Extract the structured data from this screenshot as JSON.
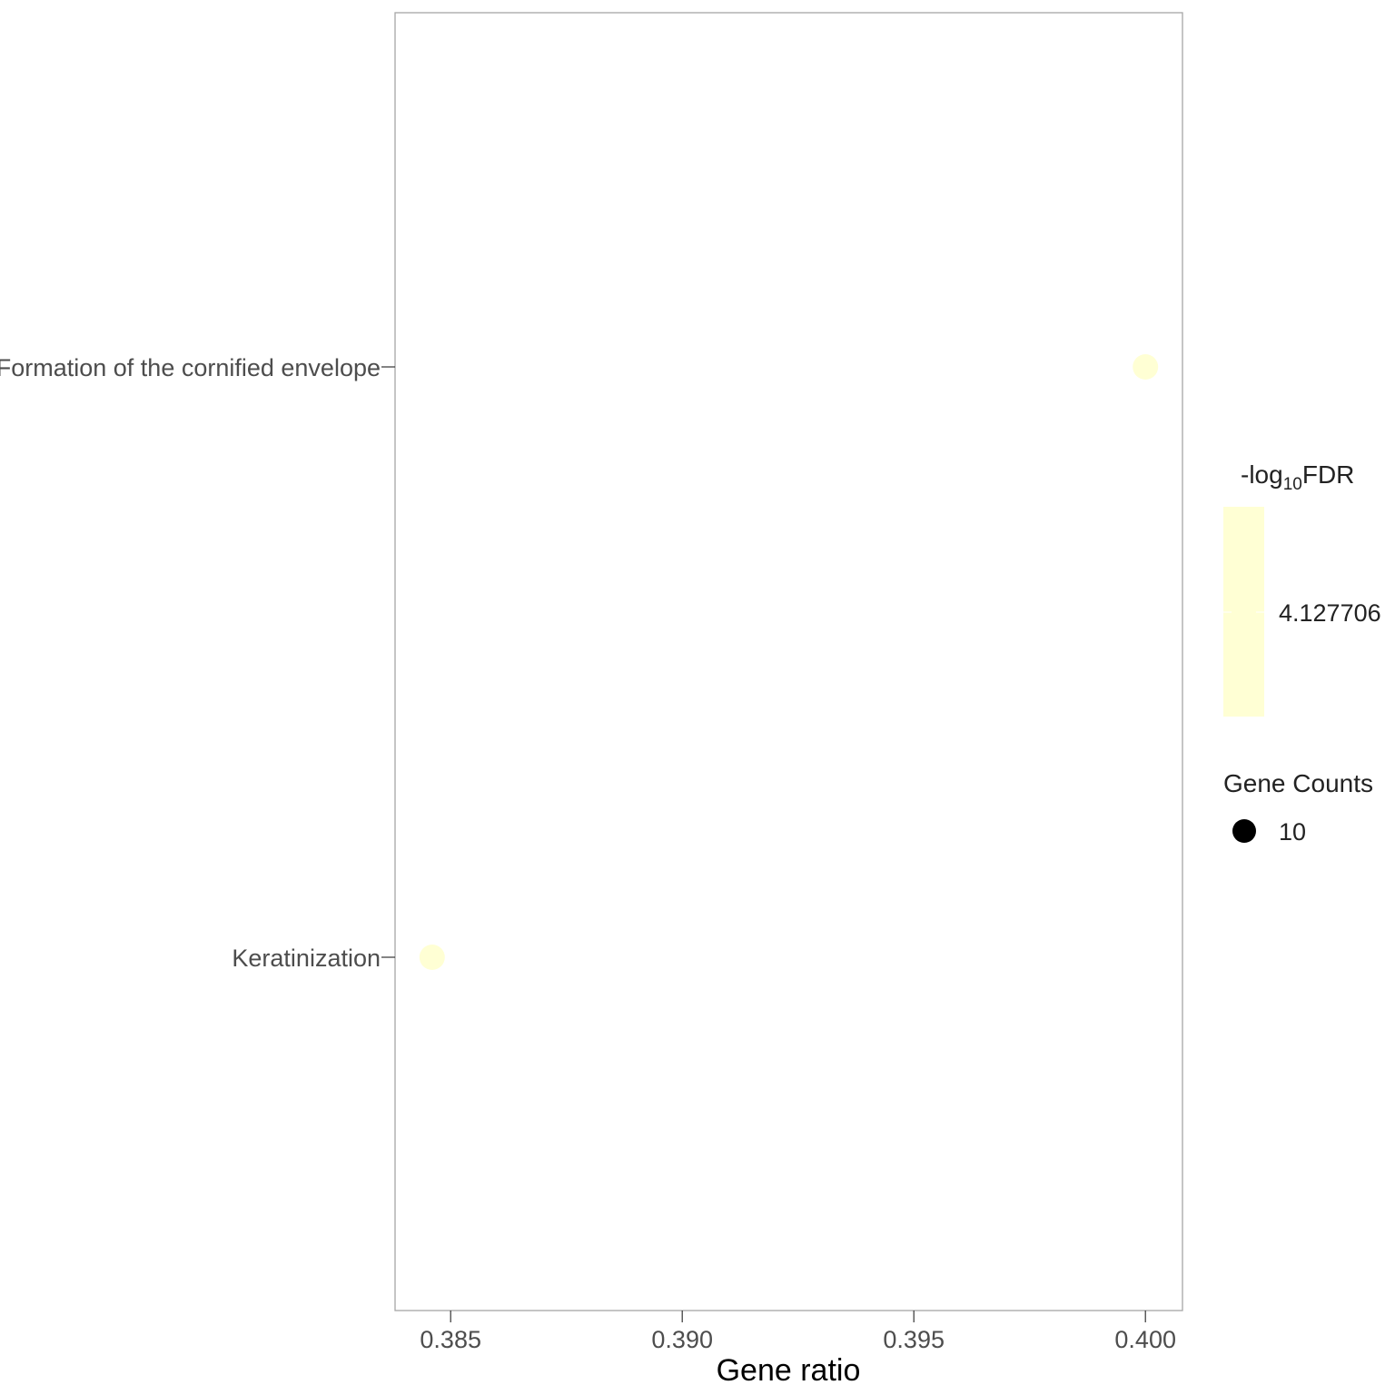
{
  "chart_data": {
    "type": "scatter",
    "xlabel": "Gene ratio",
    "ylabel": "",
    "title": "",
    "xlim": [
      0.3838,
      0.4008
    ],
    "x_ticks": [
      "0.385",
      "0.390",
      "0.395",
      "0.400"
    ],
    "x_tick_values": [
      0.385,
      0.39,
      0.395,
      0.4
    ],
    "categories": [
      "Formation of the cornified envelope",
      "Keratinization"
    ],
    "points": [
      {
        "term": "Formation of the cornified envelope",
        "x": 0.4,
        "count": 10,
        "neg_log10_fdr": 4.127706
      },
      {
        "term": "Keratinization",
        "x": 0.3846,
        "count": 10,
        "neg_log10_fdr": 4.127706
      }
    ],
    "grid": false,
    "point_color": "#ffffd4",
    "frame_color": "#a6a6a6",
    "legend": {
      "placement": "right",
      "color_title_prefix": "-log",
      "color_title_sub": "10",
      "color_title_suffix": "FDR",
      "color_value": "4.127706",
      "size_title": "Gene Counts",
      "size_value": "10",
      "size_key_color": "#000000"
    }
  }
}
